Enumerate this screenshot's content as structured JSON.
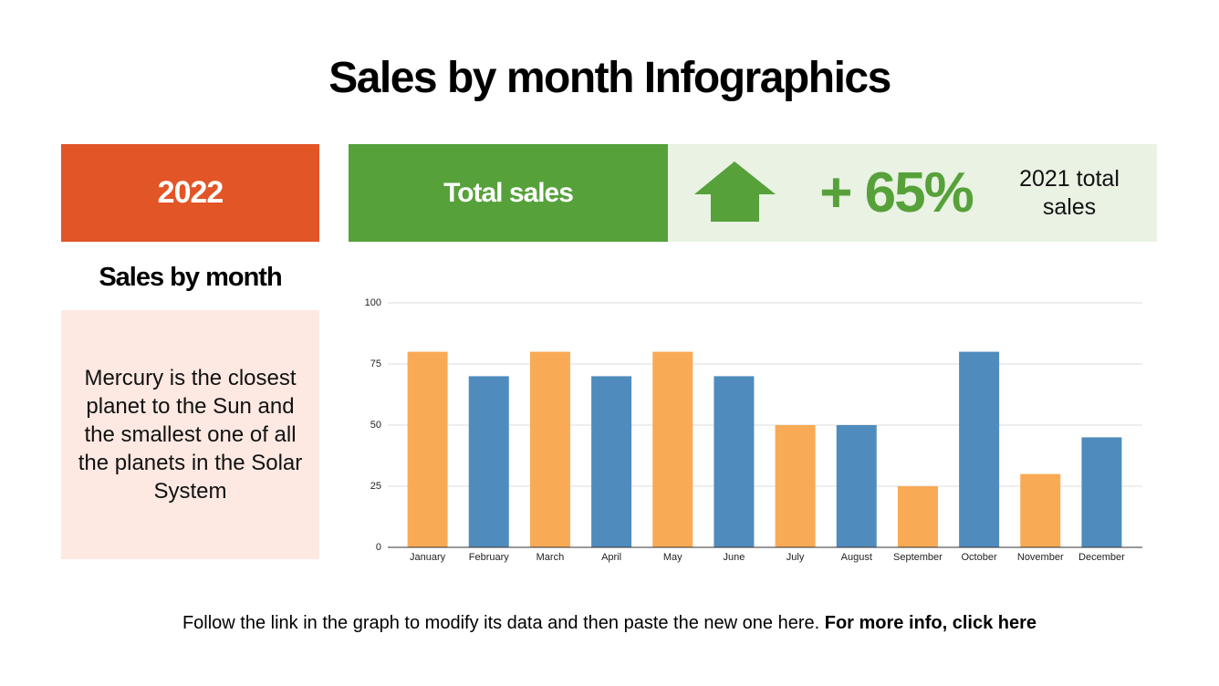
{
  "header": {
    "title": "Sales by month Infographics"
  },
  "year": "2022",
  "side": {
    "heading": "Sales by month",
    "text": "Mercury is the closest planet to the Sun and the smallest one of all the planets in the Solar System"
  },
  "stats": {
    "label": "Total sales",
    "change": "+ 65%",
    "comparison": "2021 total sales"
  },
  "footer": {
    "text": "Follow the link in the graph to modify its data and then paste the new one here.",
    "link": "For more info, click here"
  },
  "chart_data": {
    "type": "bar",
    "categories": [
      "January",
      "February",
      "March",
      "April",
      "May",
      "June",
      "July",
      "August",
      "September",
      "October",
      "November",
      "December"
    ],
    "values": [
      80,
      70,
      80,
      70,
      80,
      70,
      50,
      50,
      25,
      80,
      30,
      45
    ],
    "colors": [
      "#f9aa55",
      "#4f8cbd",
      "#f9aa55",
      "#4f8cbd",
      "#f9aa55",
      "#4f8cbd",
      "#f9aa55",
      "#4f8cbd",
      "#f9aa55",
      "#4f8cbd",
      "#f9aa55",
      "#4f8cbd"
    ],
    "ylim": [
      0,
      100
    ],
    "yticks": [
      0,
      25,
      50,
      75,
      100
    ],
    "grid": true
  }
}
